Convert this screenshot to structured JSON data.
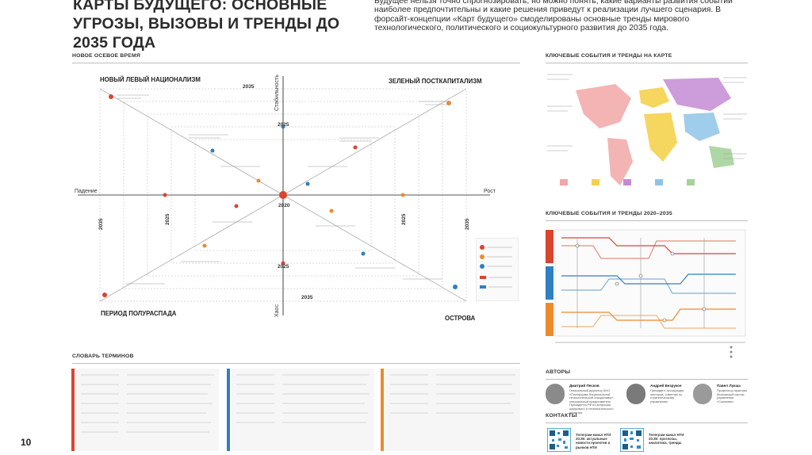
{
  "header": {
    "title": "КАРТЫ БУДУЩЕГО: ОСНОВНЫЕ УГРОЗЫ, ВЫЗОВЫ И ТРЕНДЫ ДО 2035 ГОДА",
    "intro": "Будущее нельзя точно спрогнозировать, но можно понять, какие варианты развития событий наиболее предпочтительны и какие решения приведут к реализации лучшего сценария. В форсайт-концепции «Карт будущего» смоделированы основные тренды мирового технологического, политического и социокультурного развития до 2035 года."
  },
  "axial_time": {
    "section_title": "НОВОЕ ОСЕВОЕ ВРЕМЯ",
    "corners": {
      "top_left": "НОВЫЙ ЛЕВЫЙ НАЦИОНАЛИЗМ",
      "top_right": "ЗЕЛЕНЫЙ ПОСТКАПИТАЛИЗМ",
      "bottom_left": "ПЕРИОД ПОЛУРАСПАДА",
      "bottom_right": "ОСТРОВА"
    },
    "axes": {
      "top": "Стабильность",
      "bottom": "Хаос",
      "left": "Падение",
      "right": "Рост"
    },
    "years": {
      "y2035": "2035",
      "y2025": "2025",
      "y2020": "2020"
    }
  },
  "map_section": {
    "title": "КЛЮЧЕВЫЕ СОБЫТИЯ И ТРЕНДЫ НА КАРТЕ"
  },
  "timeline_section": {
    "title": "КЛЮЧЕВЫЕ СОБЫТИЯ И ТРЕНДЫ 2020–2035"
  },
  "glossary": {
    "title": "СЛОВАРЬ ТЕРМИНОВ"
  },
  "authors": {
    "title": "АВТОРЫ",
    "people": [
      {
        "name": "Дмитрий Песков",
        "role": "Генеральный директор АНО «Платформа Национальной технологической инициативы», специальный представитель Президента РФ по вопросам цифрового и технологического развития"
      },
      {
        "name": "Андрей Безрукое",
        "role": "Президент Ассоциации лекторов, советник по стратегическому управлению"
      },
      {
        "name": "Павел Лукша",
        "role": "Профессор практики Московской школы управления «Сколково»"
      }
    ]
  },
  "contacts": {
    "title": "КОНТАКТЫ",
    "items": [
      {
        "text": "Телеграм-канал НТИ 20.35: актуальные новости проектов и рынков НТИ"
      },
      {
        "text": "Телеграм-канал НТИ 20.35: прогнозы, аналитика, тренды"
      }
    ]
  },
  "page": {
    "number": "10"
  },
  "colors": {
    "accent_red": "#d9452f",
    "accent_orange": "#ef8a2c",
    "accent_blue": "#2f7fc1",
    "grid": "#cfcfcf"
  }
}
